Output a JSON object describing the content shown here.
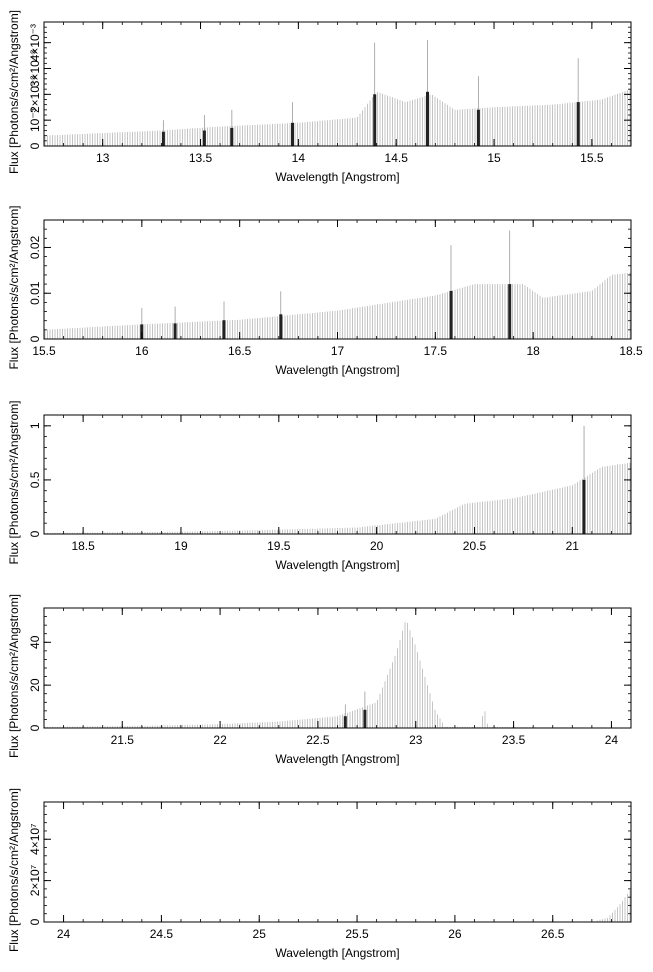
{
  "chart_data": [
    {
      "type": "bar",
      "xlabel": "Wavelength [Angstrom]",
      "ylabel": "Flux [Photons/s/cm²/Angstrom]",
      "xlim": [
        12.7,
        15.7
      ],
      "ylim": [
        0,
        0.0048
      ],
      "x_ticks": [
        13,
        13.5,
        14,
        14.5,
        15,
        15.5
      ],
      "x_tick_labels": [
        "13",
        "13.5",
        "14",
        "14.5",
        "15",
        "15.5"
      ],
      "y_ticks": [
        0,
        0.001,
        0.002,
        0.003,
        0.004
      ],
      "y_tick_labels": [
        "0",
        "10⁻³",
        "2×10⁻³",
        "3×10⁻³",
        "4×10⁻³"
      ],
      "continuum": [
        [
          12.7,
          0.0004
        ],
        [
          13.3,
          0.0006
        ],
        [
          13.6,
          0.00075
        ],
        [
          14.0,
          0.0009
        ],
        [
          14.3,
          0.0011
        ],
        [
          14.4,
          0.0021
        ],
        [
          14.55,
          0.0017
        ],
        [
          14.68,
          0.002
        ],
        [
          14.8,
          0.0014
        ],
        [
          15.0,
          0.0015
        ],
        [
          15.3,
          0.0016
        ],
        [
          15.55,
          0.0018
        ],
        [
          15.7,
          0.0022
        ]
      ],
      "lines": [
        {
          "x": 13.31,
          "flux": 0.00055,
          "err": 0.001
        },
        {
          "x": 13.52,
          "flux": 0.0006,
          "err": 0.0012
        },
        {
          "x": 13.66,
          "flux": 0.0007,
          "err": 0.0014
        },
        {
          "x": 13.97,
          "flux": 0.0009,
          "err": 0.0017
        },
        {
          "x": 14.39,
          "flux": 0.002,
          "err": 0.004
        },
        {
          "x": 14.66,
          "flux": 0.0021,
          "err": 0.0041
        },
        {
          "x": 14.92,
          "flux": 0.0014,
          "err": 0.0027
        },
        {
          "x": 15.43,
          "flux": 0.0017,
          "err": 0.0034
        }
      ]
    },
    {
      "type": "bar",
      "xlabel": "Wavelength [Angstrom]",
      "ylabel": "Flux [Photons/s/cm²/Angstrom]",
      "xlim": [
        15.5,
        18.5
      ],
      "ylim": [
        0,
        0.026
      ],
      "x_ticks": [
        15.5,
        16,
        16.5,
        17,
        17.5,
        18,
        18.5
      ],
      "x_tick_labels": [
        "15.5",
        "16",
        "16.5",
        "17",
        "17.5",
        "18",
        "18.5"
      ],
      "y_ticks": [
        0,
        0.01,
        0.02
      ],
      "y_tick_labels": [
        "0",
        "0.01",
        "0.02"
      ],
      "continuum": [
        [
          15.5,
          0.002
        ],
        [
          16.0,
          0.0032
        ],
        [
          16.5,
          0.0042
        ],
        [
          17.0,
          0.0062
        ],
        [
          17.5,
          0.0095
        ],
        [
          17.7,
          0.012
        ],
        [
          17.95,
          0.012
        ],
        [
          18.05,
          0.009
        ],
        [
          18.3,
          0.0105
        ],
        [
          18.4,
          0.014
        ],
        [
          18.5,
          0.0145
        ]
      ],
      "lines": [
        {
          "x": 16.0,
          "flux": 0.0032,
          "err": 0.0068
        },
        {
          "x": 16.17,
          "flux": 0.0034,
          "err": 0.0071
        },
        {
          "x": 16.42,
          "flux": 0.0041,
          "err": 0.0082
        },
        {
          "x": 16.71,
          "flux": 0.0054,
          "err": 0.0104
        },
        {
          "x": 17.58,
          "flux": 0.0105,
          "err": 0.0205
        },
        {
          "x": 17.88,
          "flux": 0.012,
          "err": 0.0237
        }
      ]
    },
    {
      "type": "bar",
      "xlabel": "Wavelength [Angstrom]",
      "ylabel": "Flux [Photons/s/cm²/Angstrom]",
      "xlim": [
        18.3,
        21.3
      ],
      "ylim": [
        0,
        1.1
      ],
      "x_ticks": [
        18.5,
        19,
        19.5,
        20,
        20.5,
        21
      ],
      "x_tick_labels": [
        "18.5",
        "19",
        "19.5",
        "20",
        "20.5",
        "21"
      ],
      "y_ticks": [
        0,
        0.5,
        1
      ],
      "y_tick_labels": [
        "0",
        "0.5",
        "1"
      ],
      "continuum": [
        [
          18.3,
          0.01
        ],
        [
          19.0,
          0.02
        ],
        [
          19.5,
          0.04
        ],
        [
          19.9,
          0.06
        ],
        [
          20.1,
          0.1
        ],
        [
          20.3,
          0.14
        ],
        [
          20.45,
          0.28
        ],
        [
          20.7,
          0.33
        ],
        [
          21.0,
          0.45
        ],
        [
          21.15,
          0.62
        ],
        [
          21.3,
          0.66
        ]
      ],
      "lines": [
        {
          "x": 21.06,
          "flux": 0.5,
          "err": 1.0
        }
      ]
    },
    {
      "type": "bar",
      "xlabel": "Wavelength [Angstrom]",
      "ylabel": "Flux [Photons/s/cm²/Angstrom]",
      "xlim": [
        21.1,
        24.1
      ],
      "ylim": [
        0,
        56
      ],
      "x_ticks": [
        21.5,
        22,
        22.5,
        23,
        23.5,
        24
      ],
      "x_tick_labels": [
        "21.5",
        "22",
        "22.5",
        "23",
        "23.5",
        "24"
      ],
      "y_ticks": [
        0,
        20,
        40
      ],
      "y_tick_labels": [
        "0",
        "20",
        "40"
      ],
      "continuum": [
        [
          21.1,
          0.5
        ],
        [
          21.6,
          1.0
        ],
        [
          22.0,
          1.8
        ],
        [
          22.3,
          3.0
        ],
        [
          22.6,
          5.5
        ],
        [
          22.8,
          12.0
        ],
        [
          22.9,
          35.0
        ],
        [
          22.95,
          51.0
        ],
        [
          23.0,
          38.0
        ],
        [
          23.1,
          8.0
        ],
        [
          23.15,
          0.5
        ],
        [
          23.33,
          0.5
        ],
        [
          23.35,
          9.5
        ],
        [
          23.37,
          0.5
        ],
        [
          24.1,
          0.2
        ]
      ],
      "lines": [
        {
          "x": 22.64,
          "flux": 5.5,
          "err": 11.0
        },
        {
          "x": 22.74,
          "flux": 8.5,
          "err": 17.0
        }
      ]
    },
    {
      "type": "bar",
      "xlabel": "Wavelength [Angstrom]",
      "ylabel": "Flux [Photons/s/cm²/Angstrom]",
      "xlim": [
        23.9,
        26.9
      ],
      "ylim": [
        0,
        58000000
      ],
      "x_ticks": [
        24,
        24.5,
        25,
        25.5,
        26,
        26.5
      ],
      "x_tick_labels": [
        "24",
        "24.5",
        "25",
        "25.5",
        "26",
        "26.5"
      ],
      "y_ticks": [
        0,
        20000000,
        40000000
      ],
      "y_tick_labels": [
        "0",
        "2×10⁷",
        "4×10⁷"
      ],
      "continuum": [
        [
          23.9,
          0
        ],
        [
          26.7,
          0
        ],
        [
          26.78,
          2000000
        ],
        [
          26.84,
          8000000
        ],
        [
          26.9,
          16000000
        ]
      ],
      "lines": []
    }
  ]
}
